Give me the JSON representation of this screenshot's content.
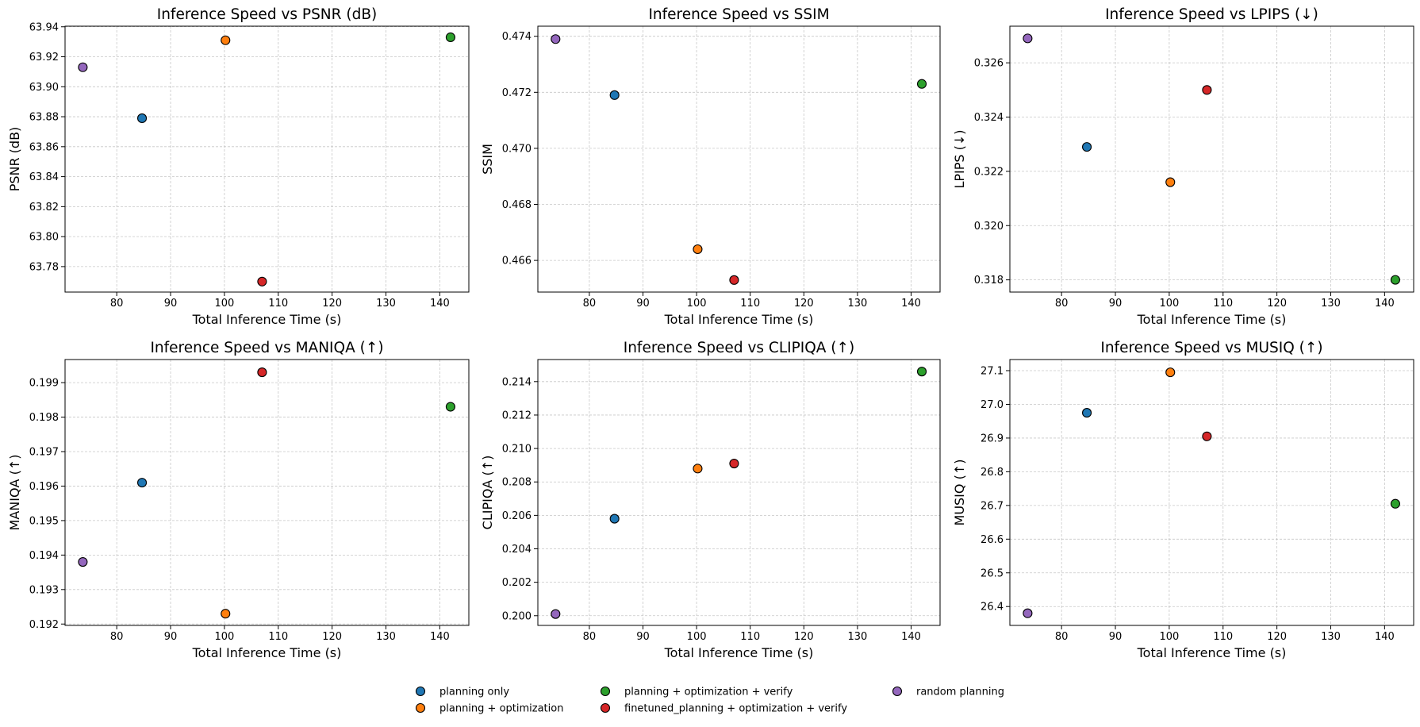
{
  "legend": {
    "entries": [
      {
        "label": "planning only",
        "color": "#1f77b4"
      },
      {
        "label": "planning + optimization",
        "color": "#ff7f0e"
      },
      {
        "label": "planning + optimization + verify",
        "color": "#2ca02c"
      },
      {
        "label": "finetuned_planning + optimization + verify",
        "color": "#d62728"
      },
      {
        "label": "random planning",
        "color": "#9467bd"
      }
    ],
    "placement": "bottom-center"
  },
  "chart_data": [
    {
      "type": "scatter",
      "title": "Inference Speed vs PSNR (dB)",
      "xlabel": "Total Inference Time (s)",
      "ylabel": "PSNR (dB)",
      "xlim": [
        70.4,
        145.4
      ],
      "ylim": [
        63.763,
        63.9404
      ],
      "xticks": [
        "80",
        "90",
        "100",
        "110",
        "120",
        "130",
        "140"
      ],
      "yticks": [
        "63.78",
        "63.80",
        "63.82",
        "63.84",
        "63.86",
        "63.88",
        "63.90",
        "63.92",
        "63.94"
      ],
      "grid": true,
      "series": [
        {
          "name": "planning only",
          "x": [
            84.7
          ],
          "y": [
            63.879
          ]
        },
        {
          "name": "planning + optimization",
          "x": [
            100.2
          ],
          "y": [
            63.931
          ]
        },
        {
          "name": "planning + optimization + verify",
          "x": [
            142.0
          ],
          "y": [
            63.933
          ]
        },
        {
          "name": "finetuned_planning + optimization + verify",
          "x": [
            107.0
          ],
          "y": [
            63.77
          ]
        },
        {
          "name": "random planning",
          "x": [
            73.7
          ],
          "y": [
            63.913
          ]
        }
      ]
    },
    {
      "type": "scatter",
      "title": "Inference Speed vs SSIM",
      "xlabel": "Total Inference Time (s)",
      "ylabel": "SSIM",
      "xlim": [
        70.4,
        145.4
      ],
      "ylim": [
        0.46487,
        0.47436
      ],
      "xticks": [
        "80",
        "90",
        "100",
        "110",
        "120",
        "130",
        "140"
      ],
      "yticks": [
        "0.466",
        "0.468",
        "0.470",
        "0.472",
        "0.474"
      ],
      "grid": true,
      "series": [
        {
          "name": "planning only",
          "x": [
            84.7
          ],
          "y": [
            0.4719
          ]
        },
        {
          "name": "planning + optimization",
          "x": [
            100.2
          ],
          "y": [
            0.4664
          ]
        },
        {
          "name": "planning + optimization + verify",
          "x": [
            142.0
          ],
          "y": [
            0.4723
          ]
        },
        {
          "name": "finetuned_planning + optimization + verify",
          "x": [
            107.0
          ],
          "y": [
            0.4653
          ]
        },
        {
          "name": "random planning",
          "x": [
            73.7
          ],
          "y": [
            0.4739
          ]
        }
      ]
    },
    {
      "type": "scatter",
      "title": "Inference Speed vs LPIPS (↓)",
      "xlabel": "Total Inference Time (s)",
      "ylabel": "LPIPS (↓)",
      "xlim": [
        70.4,
        145.4
      ],
      "ylim": [
        0.31755,
        0.32735
      ],
      "xticks": [
        "80",
        "90",
        "100",
        "110",
        "120",
        "130",
        "140"
      ],
      "yticks": [
        "0.318",
        "0.320",
        "0.322",
        "0.324",
        "0.326"
      ],
      "grid": true,
      "series": [
        {
          "name": "planning only",
          "x": [
            84.7
          ],
          "y": [
            0.3229
          ]
        },
        {
          "name": "planning + optimization",
          "x": [
            100.2
          ],
          "y": [
            0.3216
          ]
        },
        {
          "name": "planning + optimization + verify",
          "x": [
            142.0
          ],
          "y": [
            0.318
          ]
        },
        {
          "name": "finetuned_planning + optimization + verify",
          "x": [
            107.0
          ],
          "y": [
            0.325
          ]
        },
        {
          "name": "random planning",
          "x": [
            73.7
          ],
          "y": [
            0.3269
          ]
        }
      ]
    },
    {
      "type": "scatter",
      "title": "Inference Speed vs MANIQA (↑)",
      "xlabel": "Total Inference Time (s)",
      "ylabel": "MANIQA (↑)",
      "xlim": [
        70.4,
        145.4
      ],
      "ylim": [
        0.19196,
        0.19967
      ],
      "xticks": [
        "80",
        "90",
        "100",
        "110",
        "120",
        "130",
        "140"
      ],
      "yticks": [
        "0.192",
        "0.193",
        "0.194",
        "0.195",
        "0.196",
        "0.197",
        "0.198",
        "0.199"
      ],
      "grid": true,
      "series": [
        {
          "name": "planning only",
          "x": [
            84.7
          ],
          "y": [
            0.1961
          ]
        },
        {
          "name": "planning + optimization",
          "x": [
            100.2
          ],
          "y": [
            0.1923
          ]
        },
        {
          "name": "planning + optimization + verify",
          "x": [
            142.0
          ],
          "y": [
            0.1983
          ]
        },
        {
          "name": "finetuned_planning + optimization + verify",
          "x": [
            107.0
          ],
          "y": [
            0.1993
          ]
        },
        {
          "name": "random planning",
          "x": [
            73.7
          ],
          "y": [
            0.1938
          ]
        }
      ]
    },
    {
      "type": "scatter",
      "title": "Inference Speed vs CLIPIQA (↑)",
      "xlabel": "Total Inference Time (s)",
      "ylabel": "CLIPIQA (↑)",
      "xlim": [
        70.4,
        145.4
      ],
      "ylim": [
        0.19942,
        0.21532
      ],
      "xticks": [
        "80",
        "90",
        "100",
        "110",
        "120",
        "130",
        "140"
      ],
      "yticks": [
        "0.200",
        "0.202",
        "0.204",
        "0.206",
        "0.208",
        "0.210",
        "0.212",
        "0.214"
      ],
      "grid": true,
      "series": [
        {
          "name": "planning only",
          "x": [
            84.7
          ],
          "y": [
            0.2058
          ]
        },
        {
          "name": "planning + optimization",
          "x": [
            100.2
          ],
          "y": [
            0.2088
          ]
        },
        {
          "name": "planning + optimization + verify",
          "x": [
            142.0
          ],
          "y": [
            0.2146
          ]
        },
        {
          "name": "finetuned_planning + optimization + verify",
          "x": [
            107.0
          ],
          "y": [
            0.2091
          ]
        },
        {
          "name": "random planning",
          "x": [
            73.7
          ],
          "y": [
            0.2001
          ]
        }
      ]
    },
    {
      "type": "scatter",
      "title": "Inference Speed vs MUSIQ (↑)",
      "xlabel": "Total Inference Time (s)",
      "ylabel": "MUSIQ (↑)",
      "xlim": [
        70.4,
        145.4
      ],
      "ylim": [
        26.344,
        27.133
      ],
      "xticks": [
        "80",
        "90",
        "100",
        "110",
        "120",
        "130",
        "140"
      ],
      "yticks": [
        "26.4",
        "26.5",
        "26.6",
        "26.7",
        "26.8",
        "26.9",
        "27.0",
        "27.1"
      ],
      "grid": true,
      "series": [
        {
          "name": "planning only",
          "x": [
            84.7
          ],
          "y": [
            26.975
          ]
        },
        {
          "name": "planning + optimization",
          "x": [
            100.2
          ],
          "y": [
            27.095
          ]
        },
        {
          "name": "planning + optimization + verify",
          "x": [
            142.0
          ],
          "y": [
            26.705
          ]
        },
        {
          "name": "finetuned_planning + optimization + verify",
          "x": [
            107.0
          ],
          "y": [
            26.905
          ]
        },
        {
          "name": "random planning",
          "x": [
            73.7
          ],
          "y": [
            26.38
          ]
        }
      ]
    }
  ]
}
